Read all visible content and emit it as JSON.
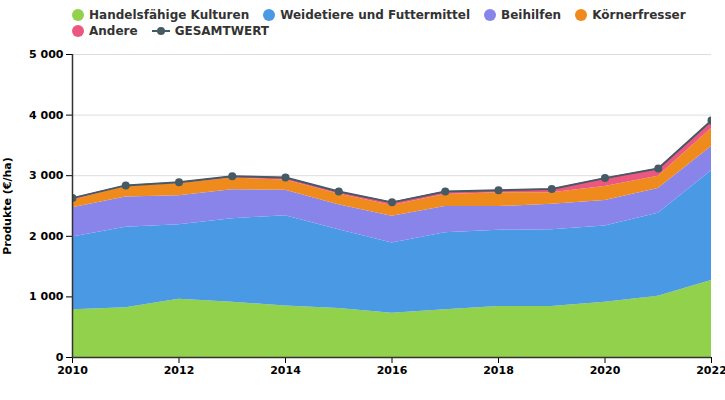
{
  "chart_data": {
    "type": "area",
    "stacked": true,
    "y_label": "Produkte (€/ha)",
    "x": [
      2010,
      2011,
      2012,
      2013,
      2014,
      2015,
      2016,
      2017,
      2018,
      2019,
      2020,
      2021,
      2022
    ],
    "xlim": [
      2010,
      2022
    ],
    "xticks": [
      2010,
      2012,
      2014,
      2016,
      2018,
      2020,
      2022
    ],
    "ylim": [
      0,
      5000
    ],
    "yticks": [
      0,
      {
        "value": 1000,
        "label": "1 000"
      },
      {
        "value": 2000,
        "label": "2 000"
      },
      {
        "value": 3000,
        "label": "3 000"
      },
      {
        "value": 4000,
        "label": "4 000"
      },
      {
        "value": 5000,
        "label": "5 000"
      }
    ],
    "grid": true,
    "legend": "top",
    "series": [
      {
        "name": "Handelsfähige Kulturen",
        "color": "#92d14b",
        "type": "area",
        "values": [
          790,
          820,
          960,
          910,
          850,
          810,
          730,
          790,
          840,
          840,
          910,
          1010,
          1270
        ]
      },
      {
        "name": "Weidetiere und Futtermittel",
        "color": "#4a99e4",
        "type": "area",
        "values": [
          1200,
          1330,
          1230,
          1380,
          1490,
          1300,
          1160,
          1270,
          1260,
          1270,
          1260,
          1370,
          1810
        ]
      },
      {
        "name": "Beihilfen",
        "color": "#8884ea",
        "type": "area",
        "values": [
          480,
          500,
          480,
          480,
          420,
          410,
          440,
          430,
          390,
          420,
          420,
          410,
          400
        ]
      },
      {
        "name": "Körnerfresser",
        "color": "#ef8a1c",
        "type": "area",
        "values": [
          130,
          170,
          200,
          190,
          170,
          180,
          180,
          200,
          230,
          190,
          230,
          200,
          300
        ]
      },
      {
        "name": "Andere",
        "color": "#ec5780",
        "type": "area",
        "values": [
          30,
          20,
          20,
          30,
          40,
          40,
          50,
          50,
          40,
          60,
          140,
          130,
          130
        ]
      },
      {
        "name": "GESAMTWERT",
        "color": "#455a64",
        "type": "line",
        "marker": "circle",
        "values": [
          2630,
          2840,
          2890,
          2990,
          2970,
          2740,
          2560,
          2740,
          2760,
          2780,
          2960,
          3120,
          3910
        ]
      }
    ]
  }
}
